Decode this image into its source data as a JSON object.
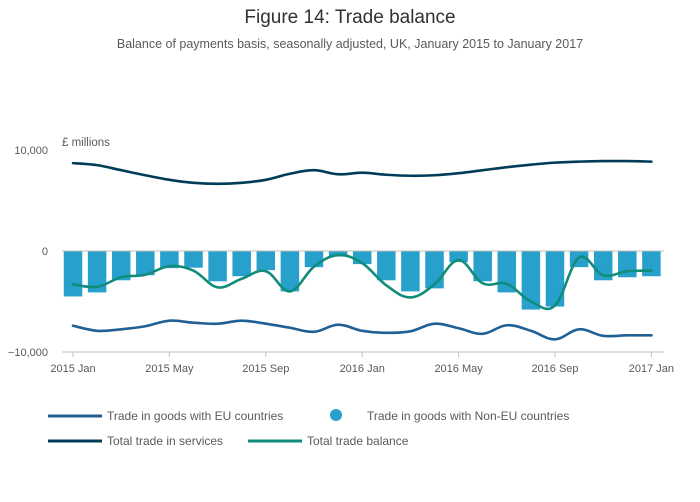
{
  "title": "Figure 14: Trade balance",
  "subtitle": "Balance of payments basis, seasonally adjusted, UK, January 2015 to January 2017",
  "colors": {
    "eu": "#206095",
    "non_eu": "#27a0cc",
    "services": "#003c57",
    "total": "#118c7b",
    "axis": "#bfbfbf",
    "text": "#5a5a5a"
  },
  "chart_data": {
    "type": "bar",
    "title": "Figure 14: Trade balance",
    "subtitle": "Balance of payments basis, seasonally adjusted, UK, January 2015 to January 2017",
    "unit_label": "£ millions",
    "ylim": [
      -10000,
      10000
    ],
    "y_ticks": [
      10000,
      0,
      -10000
    ],
    "y_tick_labels": [
      "10,000",
      "0",
      "−10,000"
    ],
    "x_tick_labels": [
      {
        "index": 0,
        "label": "2015 Jan"
      },
      {
        "index": 4,
        "label": "2015 May"
      },
      {
        "index": 8,
        "label": "2015 Sep"
      },
      {
        "index": 12,
        "label": "2016 Jan"
      },
      {
        "index": 16,
        "label": "2016 May"
      },
      {
        "index": 20,
        "label": "2016 Sep"
      },
      {
        "index": 24,
        "label": "2017 Jan"
      }
    ],
    "categories": [
      "2015 Jan",
      "2015 Feb",
      "2015 Mar",
      "2015 Apr",
      "2015 May",
      "2015 Jun",
      "2015 Jul",
      "2015 Aug",
      "2015 Sep",
      "2015 Oct",
      "2015 Nov",
      "2015 Dec",
      "2016 Jan",
      "2016 Feb",
      "2016 Mar",
      "2016 Apr",
      "2016 May",
      "2016 Jun",
      "2016 Jul",
      "2016 Aug",
      "2016 Sep",
      "2016 Oct",
      "2016 Nov",
      "2016 Dec",
      "2017 Jan"
    ],
    "series": [
      {
        "name": "Trade in goods with EU countries",
        "kind": "line",
        "color": "#206095",
        "values": [
          -7400,
          -7900,
          -7750,
          -7450,
          -6900,
          -7100,
          -7200,
          -6900,
          -7200,
          -7600,
          -8000,
          -7300,
          -7900,
          -8100,
          -7950,
          -7200,
          -7650,
          -8200,
          -7350,
          -7900,
          -8750,
          -7750,
          -8400,
          -8350,
          -8350
        ]
      },
      {
        "name": "Trade in goods with Non-EU countries",
        "kind": "bar",
        "color": "#27a0cc",
        "values": [
          -4500,
          -4100,
          -2900,
          -2400,
          -1700,
          -1650,
          -3000,
          -2500,
          -1900,
          -4000,
          -1600,
          -550,
          -1300,
          -2900,
          -4000,
          -3700,
          -1100,
          -3000,
          -4100,
          -5800,
          -5500,
          -1600,
          -2900,
          -2600,
          -2500
        ]
      },
      {
        "name": "Total trade in services",
        "kind": "line",
        "color": "#003c57",
        "values": [
          8700,
          8500,
          8000,
          7500,
          7050,
          6750,
          6650,
          6750,
          7050,
          7650,
          8000,
          7600,
          7750,
          7550,
          7450,
          7500,
          7700,
          8000,
          8300,
          8550,
          8750,
          8850,
          8900,
          8900,
          8850
        ]
      },
      {
        "name": "Total trade balance",
        "kind": "line",
        "color": "#118c7b",
        "values": [
          -3300,
          -3550,
          -2600,
          -2350,
          -1500,
          -1950,
          -3600,
          -2750,
          -2000,
          -4000,
          -1550,
          -400,
          -1200,
          -3400,
          -4600,
          -3300,
          -900,
          -3200,
          -3250,
          -5000,
          -5400,
          -650,
          -2400,
          -2000,
          -1950
        ]
      }
    ],
    "legend": [
      {
        "label": "Trade in goods with EU countries",
        "marker": "line",
        "color": "#206095"
      },
      {
        "label": "Trade in goods with Non-EU countries",
        "marker": "dot",
        "color": "#27a0cc"
      },
      {
        "label": "Total trade in services",
        "marker": "line",
        "color": "#003c57"
      },
      {
        "label": "Total trade balance",
        "marker": "line",
        "color": "#118c7b"
      }
    ],
    "legend_position": "bottom",
    "grid": false
  }
}
